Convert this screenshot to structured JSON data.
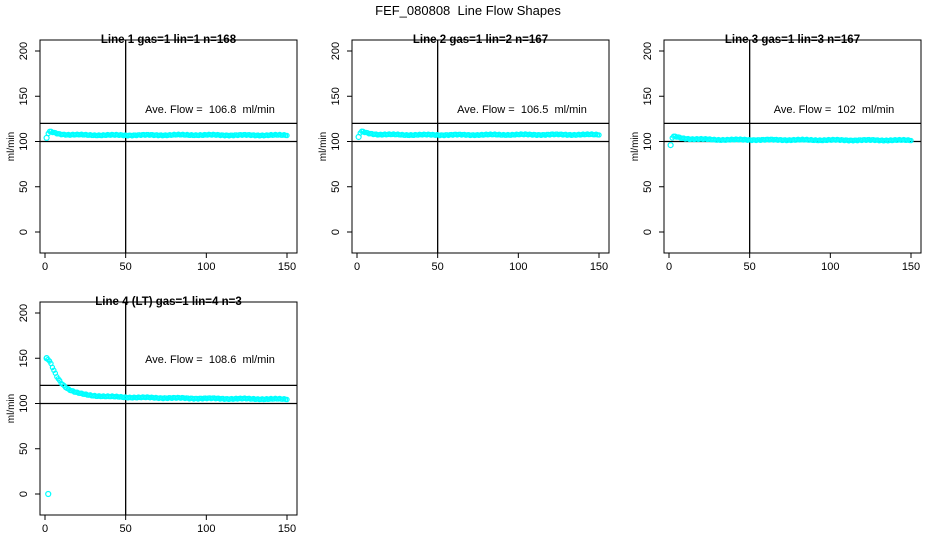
{
  "page_title": "FEF_080808  Line Flow Shapes",
  "accent_color": "#00ffff",
  "axis_color": "#000000",
  "chart_data": [
    {
      "type": "scatter",
      "title": "Line 1 gas=1 lin=1 n=168",
      "annotation": "Ave. Flow =  106.8  ml/min",
      "ave_flow": 106.8,
      "n": 168,
      "xlabel": "",
      "ylabel": "ml/min",
      "xticks": [
        0,
        50,
        100,
        150
      ],
      "yticks": [
        0,
        50,
        100,
        150,
        200
      ],
      "xlim": [
        0,
        150
      ],
      "ylim": [
        0,
        200
      ],
      "ref_hlines": [
        100,
        120
      ],
      "ref_vline": 50,
      "grid": false,
      "profile": [
        [
          2,
          109
        ],
        [
          3,
          111
        ],
        [
          4,
          110.5
        ],
        [
          6,
          109.5
        ],
        [
          9,
          108.4
        ],
        [
          14,
          107.6
        ],
        [
          25,
          107.2
        ],
        [
          50,
          107
        ],
        [
          90,
          107.3
        ],
        [
          120,
          107
        ],
        [
          150,
          107
        ]
      ],
      "open_points": [
        [
          1,
          104
        ]
      ]
    },
    {
      "type": "scatter",
      "title": "Line 2 gas=1 lin=2 n=167",
      "annotation": "Ave. Flow =  106.5  ml/min",
      "ave_flow": 106.5,
      "n": 167,
      "xlabel": "",
      "ylabel": "ml/min",
      "xticks": [
        0,
        50,
        100,
        150
      ],
      "yticks": [
        0,
        50,
        100,
        150,
        200
      ],
      "xlim": [
        0,
        150
      ],
      "ylim": [
        0,
        200
      ],
      "ref_hlines": [
        100,
        120
      ],
      "ref_vline": 50,
      "grid": false,
      "profile": [
        [
          2,
          109.5
        ],
        [
          3,
          111
        ],
        [
          5,
          110
        ],
        [
          8,
          108.8
        ],
        [
          14,
          107.8
        ],
        [
          30,
          107.4
        ],
        [
          60,
          107.3
        ],
        [
          100,
          107.6
        ],
        [
          150,
          107.6
        ]
      ],
      "open_points": [
        [
          1,
          105
        ]
      ]
    },
    {
      "type": "scatter",
      "title": "Line 3 gas=1 lin=3 n=167",
      "annotation": "Ave. Flow =  102  ml/min",
      "ave_flow": 102,
      "n": 167,
      "xlabel": "",
      "ylabel": "ml/min",
      "xticks": [
        0,
        50,
        100,
        150
      ],
      "yticks": [
        0,
        50,
        100,
        150,
        200
      ],
      "xlim": [
        0,
        150
      ],
      "ylim": [
        0,
        200
      ],
      "ref_hlines": [
        100,
        120
      ],
      "ref_vline": 50,
      "grid": false,
      "profile": [
        [
          2,
          104
        ],
        [
          3,
          105.5
        ],
        [
          5,
          105
        ],
        [
          8,
          103.8
        ],
        [
          14,
          102.8
        ],
        [
          30,
          102
        ],
        [
          70,
          101.8
        ],
        [
          110,
          101.5
        ],
        [
          150,
          101.4
        ]
      ],
      "open_points": [
        [
          1,
          96
        ]
      ]
    },
    {
      "type": "scatter",
      "title": "Line 4 (LT) gas=1 lin=4 n=3",
      "annotation": "Ave. Flow =  108.6  ml/min",
      "ave_flow": 108.6,
      "n": 3,
      "xlabel": "",
      "ylabel": "ml/min",
      "xticks": [
        0,
        50,
        100,
        150
      ],
      "yticks": [
        0,
        50,
        100,
        150,
        200
      ],
      "xlim": [
        0,
        150
      ],
      "ylim": [
        0,
        200
      ],
      "ref_hlines": [
        100,
        120
      ],
      "ref_vline": 50,
      "grid": false,
      "profile": [
        [
          1,
          150
        ],
        [
          2,
          148.5
        ],
        [
          3,
          146
        ],
        [
          4,
          142.5
        ],
        [
          5,
          138.5
        ],
        [
          6,
          134.5
        ],
        [
          7,
          131
        ],
        [
          8,
          128
        ],
        [
          9,
          125.5
        ],
        [
          10,
          123
        ],
        [
          12,
          119.5
        ],
        [
          14,
          116.5
        ],
        [
          16,
          114.5
        ],
        [
          18,
          113
        ],
        [
          20,
          111.8
        ],
        [
          23,
          110.5
        ],
        [
          26,
          109.6
        ],
        [
          30,
          108.8
        ],
        [
          35,
          108.2
        ],
        [
          40,
          107.6
        ],
        [
          50,
          107
        ],
        [
          60,
          106.6
        ],
        [
          75,
          106.2
        ],
        [
          90,
          105.8
        ],
        [
          110,
          105.4
        ],
        [
          130,
          105.1
        ],
        [
          150,
          104.8
        ]
      ],
      "open_points": [
        [
          1,
          150
        ],
        [
          2,
          0
        ]
      ]
    }
  ]
}
